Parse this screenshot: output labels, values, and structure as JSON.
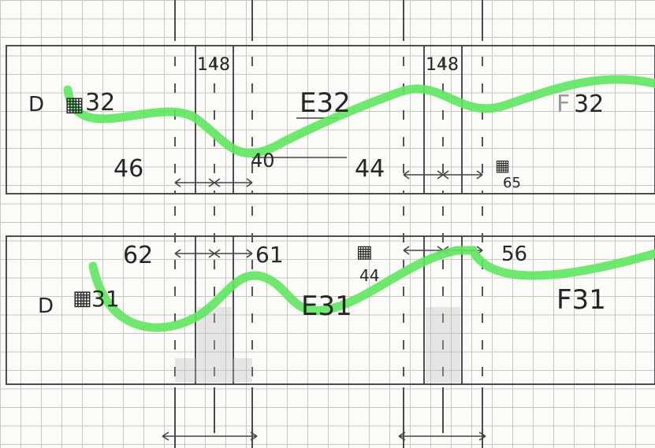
{
  "sketch": {
    "ink_color": "#262626",
    "pencil_color": "#9a9a9a",
    "wave_color": "#5ee65e",
    "top_row": {
      "cells": [
        "D32",
        "E32",
        "F32"
      ],
      "row_label": "D",
      "d_cell": "32",
      "e_cell": "E32",
      "f_cell": "32",
      "f_prefix": "F",
      "dim_left_top": "148",
      "dim_right_top": "148",
      "dim_46": "46",
      "dim_40": "40",
      "dim_44": "44",
      "dim_65": "65"
    },
    "bottom_row": {
      "cells": [
        "D31",
        "E31",
        "F31"
      ],
      "row_label": "D",
      "d_cell": "31",
      "e_cell": "E31",
      "f_cell": "F31",
      "dim_62": "62",
      "dim_61": "61",
      "dim_44": "44",
      "dim_56": "56"
    }
  }
}
